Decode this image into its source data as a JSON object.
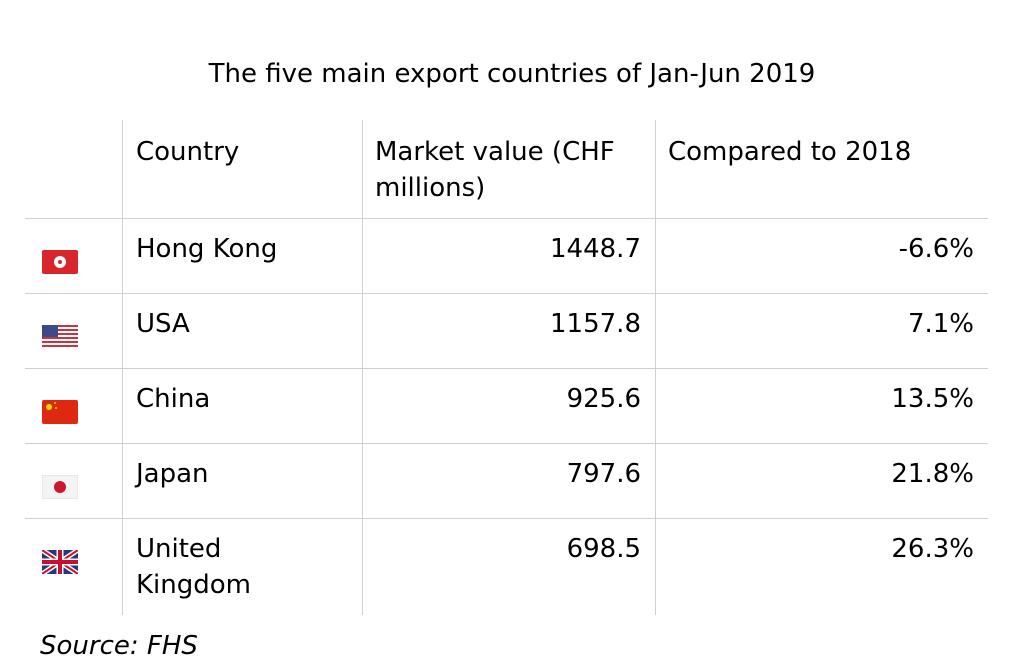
{
  "title": "The five main export countries of Jan-Jun 2019",
  "table": {
    "header": [
      "Country",
      "Market value (CHF millions)",
      "Compared to 2018"
    ],
    "rows": [
      [
        "Hong Kong",
        "1448.7",
        "-6.6%"
      ],
      [
        "USA",
        "1157.8",
        "7.1%"
      ],
      [
        "China",
        "925.6",
        "13.5%"
      ],
      [
        "Japan",
        "797.6",
        "21.8%"
      ],
      [
        "United Kingdom",
        "698.5",
        "26.3%"
      ]
    ]
  },
  "source": "Source: FHS"
}
